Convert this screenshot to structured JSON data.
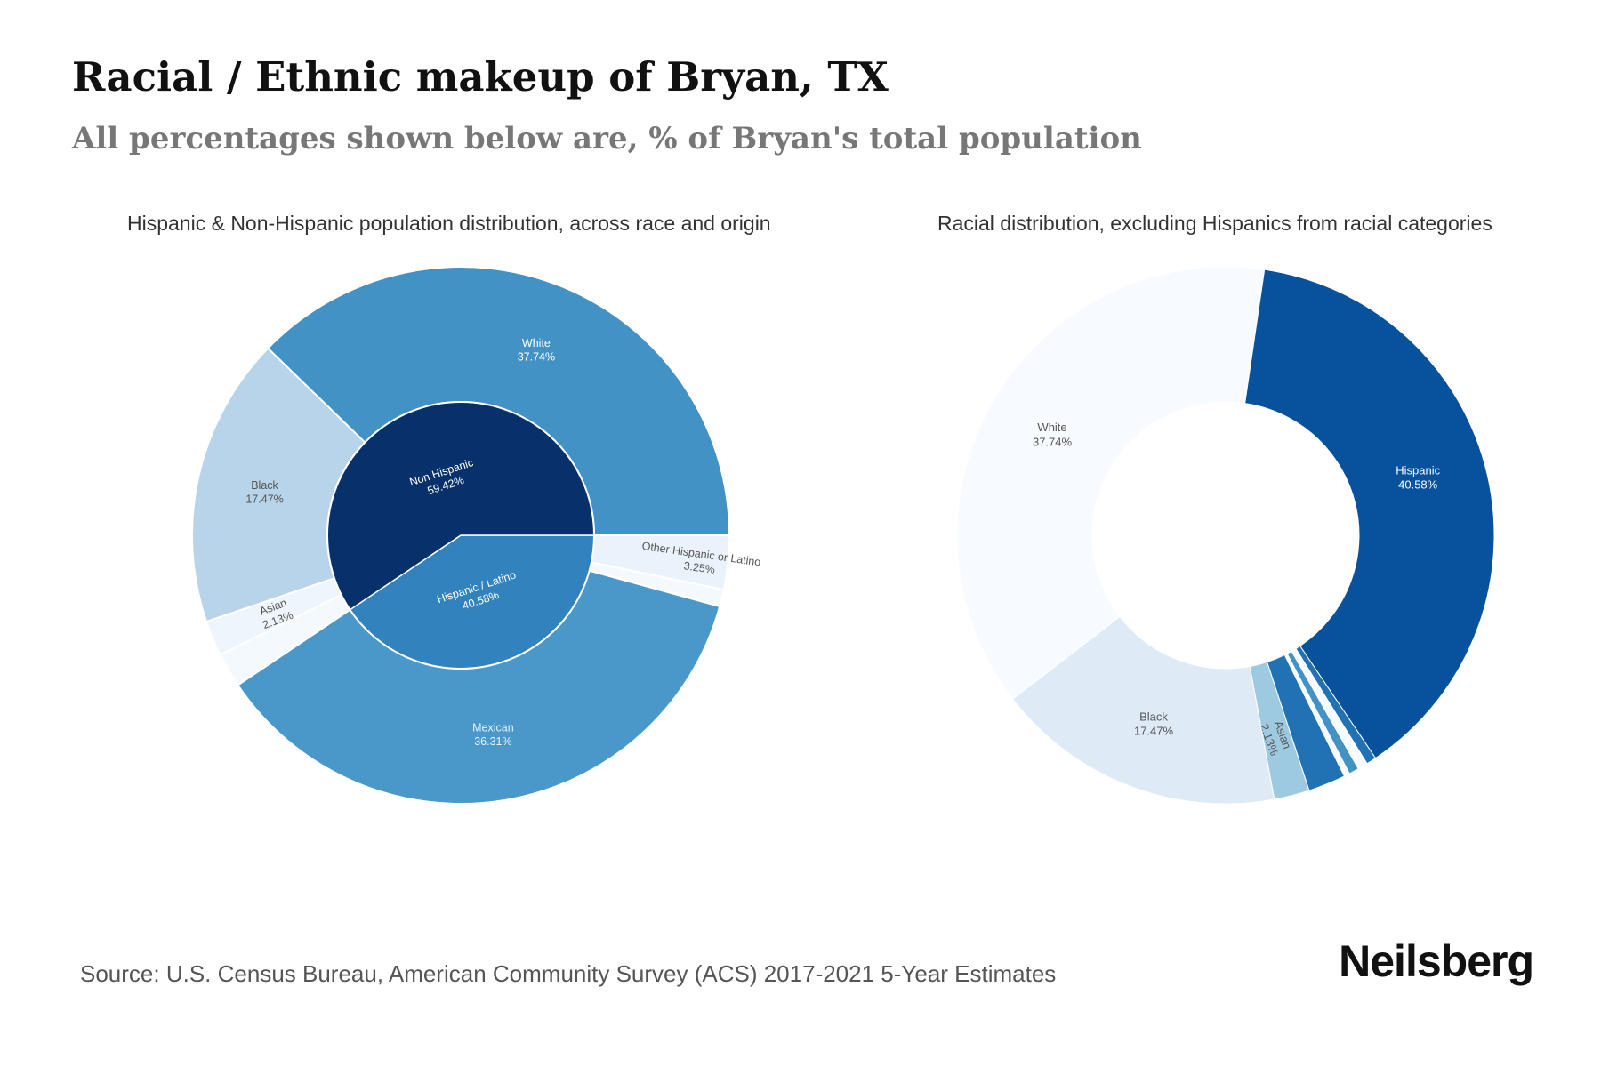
{
  "header": {
    "title": "Racial / Ethnic makeup of Bryan, TX",
    "subtitle": "All percentages shown below are, % of Bryan's total population"
  },
  "footer": {
    "source": "Source: U.S. Census Bureau, American Community Survey (ACS) 2017-2021 5-Year Estimates",
    "brand": "Neilsberg"
  },
  "chart_data": [
    {
      "type": "pie",
      "variant": "sunburst",
      "title": "Hispanic & Non-Hispanic population distribution, across race and origin",
      "inner_ring": [
        {
          "name": "Non Hispanic",
          "label": "59.42%",
          "value": 59.42,
          "color": "#08306b"
        },
        {
          "name": "Hispanic / Latino",
          "label": "40.58%",
          "value": 40.58,
          "color": "#3182bd"
        }
      ],
      "outer_ring": [
        {
          "name": "White",
          "label": "37.74%",
          "value": 37.74,
          "parent": "Non Hispanic",
          "color": "#4292c6"
        },
        {
          "name": "Black",
          "label": "17.47%",
          "value": 17.47,
          "parent": "Non Hispanic",
          "color": "#b7d4ea"
        },
        {
          "name": "Asian",
          "label": "2.13%",
          "value": 2.13,
          "parent": "Non Hispanic",
          "color": "#eef5fc"
        },
        {
          "name": "",
          "label": "",
          "value": 2.08,
          "parent": "Non Hispanic",
          "color": "#f4f9fe"
        },
        {
          "name": "Mexican",
          "label": "36.31%",
          "value": 36.31,
          "parent": "Hispanic / Latino",
          "color": "#4a98c9"
        },
        {
          "name": "Other Hispanic or Latino",
          "label": "3.25%",
          "value": 3.25,
          "parent": "Hispanic / Latino",
          "color": "#eaf2fb"
        },
        {
          "name": "",
          "label": "",
          "value": 1.02,
          "parent": "Hispanic / Latino",
          "color": "#f4f9fe"
        }
      ]
    },
    {
      "type": "pie",
      "variant": "donut",
      "title": "Racial distribution, excluding Hispanics from racial categories",
      "slices": [
        {
          "name": "Hispanic",
          "label": "40.58%",
          "value": 40.58,
          "color": "#08519c"
        },
        {
          "name": "",
          "label": "",
          "value": 0.6,
          "color": "#2171b5"
        },
        {
          "name": "",
          "label": "",
          "value": 0.6,
          "color": "#f7fbff"
        },
        {
          "name": "",
          "label": "",
          "value": 0.6,
          "color": "#4292c6"
        },
        {
          "name": "",
          "label": "",
          "value": 0.34,
          "color": "#f7fbff"
        },
        {
          "name": "",
          "label": "",
          "value": 2.25,
          "color": "#2171b5"
        },
        {
          "name": "Asian",
          "label": "2.13%",
          "value": 2.13,
          "color": "#9ecae1"
        },
        {
          "name": "Black",
          "label": "17.47%",
          "value": 17.47,
          "color": "#deebf7"
        },
        {
          "name": "White",
          "label": "37.74%",
          "value": 37.74,
          "color": "#f7fbff"
        }
      ]
    }
  ]
}
